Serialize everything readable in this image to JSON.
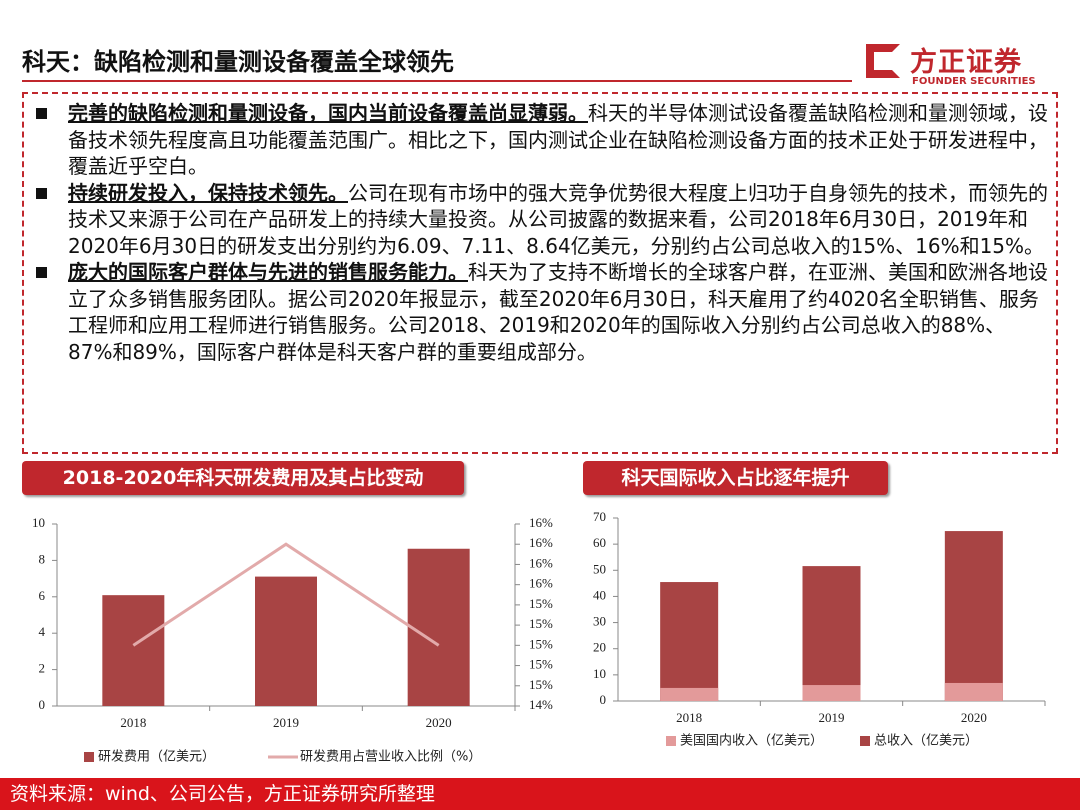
{
  "header": {
    "title": "科天：缺陷检测和量测设备覆盖全球领先",
    "logo_name": "方正证券",
    "logo_sub": "FOUNDER SECURITIES"
  },
  "bullets": [
    {
      "lead": "完善的缺陷检测和量测设备，国内当前设备覆盖尚显薄弱。",
      "text": "科天的半导体测试设备覆盖缺陷检测和量测领域，设备技术领先程度高且功能覆盖范围广。相比之下，国内测试企业在缺陷检测设备方面的技术正处于研发进程中，覆盖近乎空白。"
    },
    {
      "lead": "持续研发投入，保持技术领先。",
      "text": "公司在现有市场中的强大竞争优势很大程度上归功于自身领先的技术，而领先的技术又来源于公司在产品研发上的持续大量投资。从公司披露的数据来看，公司2018年6月30日，2019年和2020年6月30日的研发支出分别约为6.09、7.11、8.64亿美元，分别约占公司总收入的15%、16%和15%。"
    },
    {
      "lead": "庞大的国际客户群体与先进的销售服务能力。",
      "text": "科天为了支持不断增长的全球客户群，在亚洲、美国和欧洲各地设立了众多销售服务团队。据公司2020年报显示，截至2020年6月30日，科天雇用了约4020名全职销售、服务工程师和应用工程师进行销售服务。公司2018、2019和2020年的国际收入分别约占公司总收入的88%、87%和89%，国际客户群体是科天客户群的重要组成部分。"
    }
  ],
  "chart_data": [
    {
      "type": "bar",
      "title": "2018-2020年科天研发费用及其占比变动",
      "categories": [
        "2018",
        "2019",
        "2020"
      ],
      "series": [
        {
          "name": "研发费用（亿美元）",
          "color": "#a84444",
          "values": [
            6.09,
            7.11,
            8.64
          ]
        },
        {
          "name": "研发费用占营业收入比例（%）",
          "color": "#e2aaaa",
          "type": "line",
          "axis": "y2",
          "values": [
            15,
            16,
            15
          ]
        }
      ],
      "ylim": [
        0,
        10
      ],
      "yticks": [
        0,
        2,
        4,
        6,
        8,
        10
      ],
      "y2lim": [
        14.4,
        16.2
      ],
      "y2ticks": [
        {
          "value": 14.4,
          "label": "14%"
        },
        {
          "value": 14.6,
          "label": "15%"
        },
        {
          "value": 14.8,
          "label": "15%"
        },
        {
          "value": 15.0,
          "label": "15%"
        },
        {
          "value": 15.2,
          "label": "15%"
        },
        {
          "value": 15.4,
          "label": "15%"
        },
        {
          "value": 15.6,
          "label": "16%"
        },
        {
          "value": 15.8,
          "label": "16%"
        },
        {
          "value": 16.0,
          "label": "16%"
        },
        {
          "value": 16.2,
          "label": "16%"
        }
      ]
    },
    {
      "type": "bar",
      "title": "科天国际收入占比逐年提升",
      "categories": [
        "2018",
        "2019",
        "2020"
      ],
      "series": [
        {
          "name": "美国国内收入（亿美元）",
          "color": "#e39a9a",
          "values": [
            5.0,
            6.1,
            6.9
          ]
        },
        {
          "name": "总收入（亿美元）",
          "color": "#a84444",
          "values": [
            45.5,
            51.6,
            65
          ]
        }
      ],
      "ylim": [
        0,
        70
      ],
      "yticks": [
        0,
        10,
        20,
        30,
        40,
        50,
        60,
        70
      ]
    }
  ],
  "footer": {
    "source": "资料来源：wind、公司公告，方正证券研究所整理"
  }
}
